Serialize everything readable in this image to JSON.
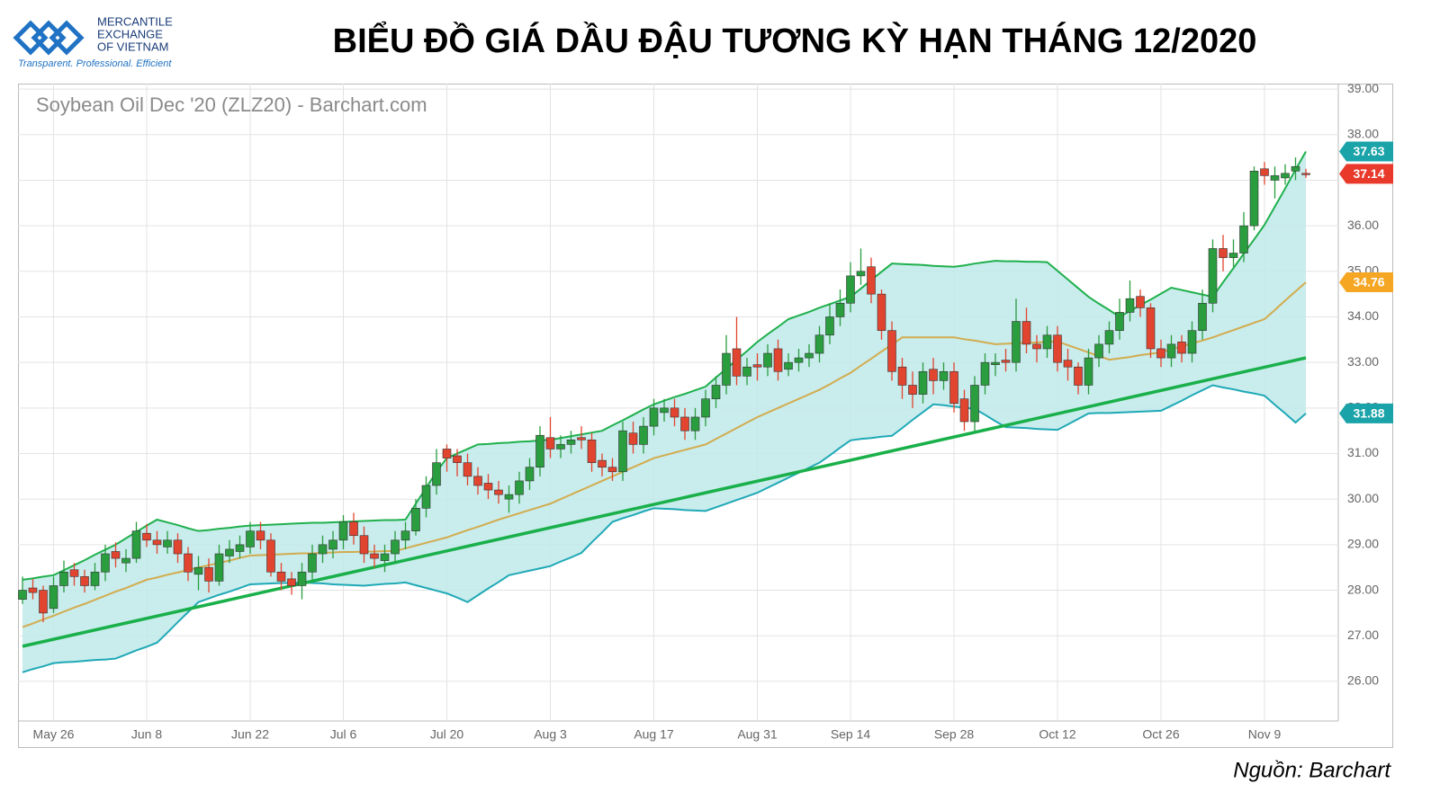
{
  "header": {
    "logo_lines": [
      "MERCANTILE",
      "EXCHANGE",
      "OF VIETNAM"
    ],
    "tagline": "Transparent. Professional. Efficient",
    "title": "BIỂU ĐỒ GIÁ DẦU ĐẬU TƯƠNG KỲ HẠN THÁNG 12/2020"
  },
  "source": "Nguồn: Barchart",
  "chart_data": {
    "type": "candlestick",
    "title": "Soybean Oil Dec '20 (ZLZ20) - Barchart.com",
    "categories": [
      null,
      null,
      null,
      "May 26",
      null,
      null,
      null,
      null,
      null,
      null,
      null,
      null,
      "Jun 8",
      null,
      null,
      null,
      null,
      null,
      null,
      null,
      null,
      null,
      "Jun 22",
      null,
      null,
      null,
      null,
      null,
      null,
      null,
      null,
      "Jul 6",
      null,
      null,
      null,
      null,
      null,
      null,
      null,
      null,
      null,
      "Jul 20",
      null,
      null,
      null,
      null,
      null,
      null,
      null,
      null,
      null,
      "Aug 3",
      null,
      null,
      null,
      null,
      null,
      null,
      null,
      null,
      null,
      "Aug 17",
      null,
      null,
      null,
      null,
      null,
      null,
      null,
      null,
      null,
      "Aug 31",
      null,
      null,
      null,
      null,
      null,
      null,
      null,
      null,
      "Sep 14",
      null,
      null,
      null,
      null,
      null,
      null,
      null,
      null,
      null,
      "Sep 28",
      null,
      null,
      null,
      null,
      null,
      null,
      null,
      null,
      null,
      "Oct 12",
      null,
      null,
      null,
      null,
      null,
      null,
      null,
      null,
      null,
      "Oct 26",
      null,
      null,
      null,
      null,
      null,
      null,
      null,
      null,
      null,
      "Nov 9",
      null,
      null,
      null,
      null
    ],
    "ylim": [
      25.13,
      39.12
    ],
    "yticks": [
      {
        "value": 26,
        "label": "26.00"
      },
      {
        "value": 27,
        "label": "27.00"
      },
      {
        "value": 28,
        "label": "28.00"
      },
      {
        "value": 29,
        "label": "29.00"
      },
      {
        "value": 30,
        "label": "30.00"
      },
      {
        "value": 31,
        "label": "31.00"
      },
      {
        "value": 32,
        "label": "32.00"
      },
      {
        "value": 33,
        "label": "33.00"
      },
      {
        "value": 34,
        "label": "34.00"
      },
      {
        "value": 35,
        "label": "35.00"
      },
      {
        "value": 36,
        "label": "36.00"
      },
      {
        "value": 37,
        "label": "37.00"
      },
      {
        "value": 38,
        "label": "38.00"
      },
      {
        "value": 39,
        "label": "39.00"
      }
    ],
    "grid": true,
    "candles": {
      "up_color": "#2a9d3f",
      "down_color": "#e2452f",
      "label_color": "#e8392b",
      "open": [
        27.8,
        28.05,
        28.0,
        27.6,
        28.1,
        28.45,
        28.3,
        28.1,
        28.4,
        28.85,
        28.6,
        28.7,
        29.25,
        29.1,
        28.95,
        29.1,
        28.8,
        28.35,
        28.5,
        28.2,
        28.75,
        28.85,
        28.95,
        29.3,
        29.1,
        28.4,
        28.25,
        28.1,
        28.4,
        28.8,
        28.9,
        29.1,
        29.5,
        29.2,
        28.8,
        28.65,
        28.8,
        29.1,
        29.3,
        29.8,
        30.3,
        31.1,
        30.95,
        30.8,
        30.5,
        30.35,
        30.2,
        30.0,
        30.1,
        30.4,
        30.7,
        31.35,
        31.1,
        31.2,
        31.35,
        31.3,
        30.85,
        30.7,
        30.6,
        31.45,
        31.2,
        31.6,
        31.9,
        32.0,
        31.8,
        31.5,
        31.8,
        32.2,
        32.5,
        33.3,
        32.7,
        32.95,
        32.9,
        33.3,
        32.85,
        33.0,
        33.1,
        33.2,
        33.6,
        34.0,
        34.3,
        34.9,
        35.1,
        34.5,
        33.7,
        32.9,
        32.5,
        32.3,
        32.85,
        32.6,
        32.8,
        32.2,
        31.7,
        32.5,
        32.95,
        33.05,
        33.0,
        33.9,
        33.4,
        33.3,
        33.6,
        33.05,
        32.9,
        32.5,
        33.1,
        33.4,
        33.7,
        34.1,
        34.45,
        34.2,
        33.3,
        33.1,
        33.45,
        33.2,
        33.7,
        34.3,
        35.5,
        35.3,
        35.4,
        36.0,
        37.25,
        37.0,
        37.05,
        37.2,
        37.15
      ],
      "high": [
        28.3,
        28.25,
        28.1,
        28.3,
        28.65,
        28.6,
        28.45,
        28.6,
        29.0,
        29.05,
        28.9,
        29.5,
        29.45,
        29.3,
        29.3,
        29.25,
        28.95,
        28.75,
        28.7,
        29.0,
        29.1,
        29.2,
        29.5,
        29.5,
        29.25,
        28.6,
        28.4,
        28.6,
        29.0,
        29.2,
        29.3,
        29.65,
        29.7,
        29.4,
        29.0,
        29.0,
        29.3,
        29.5,
        30.0,
        30.5,
        31.1,
        31.2,
        31.1,
        31.0,
        30.7,
        30.55,
        30.4,
        30.3,
        30.6,
        30.9,
        31.6,
        31.8,
        31.4,
        31.5,
        31.6,
        31.45,
        31.0,
        30.9,
        31.7,
        31.7,
        31.8,
        32.2,
        32.2,
        32.2,
        32.0,
        32.0,
        32.4,
        32.7,
        33.6,
        34.0,
        33.1,
        33.2,
        33.4,
        33.5,
        33.2,
        33.3,
        33.4,
        33.8,
        34.3,
        34.6,
        35.2,
        35.5,
        35.3,
        34.6,
        33.9,
        33.1,
        32.8,
        33.0,
        33.1,
        33.0,
        33.0,
        32.4,
        32.7,
        33.2,
        33.2,
        33.3,
        34.4,
        34.2,
        33.6,
        33.8,
        33.8,
        33.3,
        33.0,
        33.3,
        33.6,
        33.9,
        34.4,
        34.8,
        34.6,
        34.3,
        33.5,
        33.6,
        33.6,
        33.9,
        34.6,
        35.7,
        35.8,
        35.7,
        36.3,
        37.3,
        37.4,
        37.3,
        37.35,
        37.5,
        37.25
      ],
      "low": [
        27.7,
        27.8,
        27.3,
        27.5,
        27.95,
        28.1,
        27.95,
        28.0,
        28.2,
        28.5,
        28.4,
        28.6,
        28.95,
        28.8,
        28.8,
        28.6,
        28.2,
        28.0,
        27.95,
        28.1,
        28.6,
        28.7,
        28.8,
        28.9,
        28.3,
        28.0,
        27.9,
        27.8,
        28.2,
        28.6,
        28.7,
        28.9,
        29.0,
        28.6,
        28.5,
        28.4,
        28.6,
        28.9,
        29.2,
        29.6,
        30.1,
        30.6,
        30.5,
        30.3,
        30.1,
        30.0,
        29.9,
        29.7,
        29.9,
        30.2,
        30.5,
        30.9,
        30.9,
        31.0,
        31.1,
        30.6,
        30.5,
        30.4,
        30.4,
        31.0,
        31.0,
        31.4,
        31.7,
        31.6,
        31.3,
        31.3,
        31.6,
        32.0,
        32.3,
        32.5,
        32.5,
        32.6,
        32.7,
        32.6,
        32.7,
        32.8,
        32.9,
        33.0,
        33.4,
        33.8,
        34.1,
        34.7,
        34.3,
        33.5,
        32.6,
        32.2,
        32.0,
        32.1,
        32.3,
        32.4,
        31.9,
        31.5,
        31.5,
        32.3,
        32.7,
        32.8,
        32.8,
        33.2,
        33.0,
        33.1,
        32.8,
        32.6,
        32.3,
        32.3,
        32.9,
        33.2,
        33.5,
        33.9,
        34.0,
        33.1,
        32.9,
        32.9,
        33.0,
        33.0,
        33.5,
        34.1,
        35.0,
        35.1,
        35.2,
        35.9,
        36.9,
        36.6,
        36.9,
        37.0,
        37.05
      ],
      "close": [
        28.0,
        27.95,
        27.5,
        28.1,
        28.4,
        28.3,
        28.1,
        28.4,
        28.8,
        28.7,
        28.7,
        29.3,
        29.1,
        29.0,
        29.1,
        28.8,
        28.4,
        28.5,
        28.2,
        28.8,
        28.9,
        29.0,
        29.3,
        29.1,
        28.4,
        28.2,
        28.1,
        28.4,
        28.8,
        29.0,
        29.1,
        29.5,
        29.2,
        28.8,
        28.7,
        28.8,
        29.1,
        29.3,
        29.8,
        30.3,
        30.8,
        30.9,
        30.8,
        30.5,
        30.3,
        30.2,
        30.1,
        30.1,
        30.4,
        30.7,
        31.4,
        31.1,
        31.2,
        31.3,
        31.3,
        30.8,
        30.7,
        30.6,
        31.5,
        31.2,
        31.6,
        32.0,
        32.0,
        31.8,
        31.5,
        31.8,
        32.2,
        32.5,
        33.2,
        32.7,
        32.9,
        32.9,
        33.2,
        32.8,
        33.0,
        33.1,
        33.2,
        33.6,
        34.0,
        34.3,
        34.9,
        35.0,
        34.5,
        33.7,
        32.8,
        32.5,
        32.3,
        32.8,
        32.6,
        32.8,
        32.1,
        31.7,
        32.5,
        33.0,
        33.0,
        33.0,
        33.9,
        33.4,
        33.3,
        33.6,
        33.0,
        32.9,
        32.5,
        33.1,
        33.4,
        33.7,
        34.1,
        34.4,
        34.2,
        33.3,
        33.1,
        33.4,
        33.2,
        33.7,
        34.3,
        35.5,
        35.3,
        35.4,
        36.0,
        37.2,
        37.1,
        37.1,
        37.15,
        37.3,
        37.14
      ]
    },
    "band_fill": "#bfe9ea",
    "series": [
      {
        "color": "#1fb04c",
        "label_color": "#1aa3a8",
        "values": [
          28.23,
          28.26,
          28.3,
          28.33,
          28.44,
          28.55,
          28.66,
          28.78,
          28.89,
          29.0,
          29.14,
          29.28,
          29.42,
          29.55,
          29.49,
          29.43,
          29.36,
          29.3,
          29.32,
          29.35,
          29.37,
          29.4,
          29.42,
          29.43,
          29.44,
          29.45,
          29.46,
          29.47,
          29.48,
          29.48,
          29.49,
          29.5,
          29.51,
          29.52,
          29.53,
          29.54,
          29.54,
          29.55,
          29.9,
          30.25,
          30.6,
          30.9,
          31.0,
          31.1,
          31.2,
          31.21,
          31.23,
          31.24,
          31.26,
          31.27,
          31.29,
          31.3,
          31.34,
          31.38,
          31.42,
          31.46,
          31.5,
          31.62,
          31.73,
          31.85,
          31.97,
          32.08,
          32.16,
          32.24,
          32.31,
          32.39,
          32.47,
          32.67,
          32.86,
          33.06,
          33.25,
          33.45,
          33.62,
          33.78,
          33.95,
          34.03,
          34.11,
          34.2,
          34.28,
          34.36,
          34.44,
          34.62,
          34.81,
          34.99,
          35.17,
          35.16,
          35.15,
          35.14,
          35.12,
          35.11,
          35.1,
          35.13,
          35.17,
          35.2,
          35.23,
          35.22,
          35.22,
          35.21,
          35.21,
          35.2,
          35.01,
          34.82,
          34.63,
          34.44,
          34.29,
          34.15,
          34.0,
          34.13,
          34.26,
          34.38,
          34.51,
          34.64,
          34.59,
          34.54,
          34.49,
          34.44,
          34.76,
          35.07,
          35.39,
          35.7,
          36.02,
          36.42,
          36.82,
          37.23,
          37.63
        ]
      },
      {
        "color": "#d2ac4e",
        "label_color": "#f5a623",
        "values": [
          27.19,
          27.27,
          27.36,
          27.44,
          27.53,
          27.62,
          27.7,
          27.79,
          27.88,
          27.97,
          28.05,
          28.14,
          28.23,
          28.28,
          28.34,
          28.39,
          28.44,
          28.5,
          28.55,
          28.6,
          28.65,
          28.71,
          28.76,
          28.77,
          28.78,
          28.79,
          28.8,
          28.81,
          28.81,
          28.82,
          28.83,
          28.84,
          28.84,
          28.85,
          28.85,
          28.86,
          28.86,
          28.92,
          28.98,
          29.04,
          29.1,
          29.16,
          29.24,
          29.32,
          29.39,
          29.47,
          29.55,
          29.62,
          29.69,
          29.76,
          29.83,
          29.9,
          30.0,
          30.1,
          30.2,
          30.3,
          30.4,
          30.5,
          30.6,
          30.7,
          30.8,
          30.9,
          30.96,
          31.02,
          31.08,
          31.14,
          31.2,
          31.32,
          31.44,
          31.56,
          31.68,
          31.8,
          31.9,
          32.0,
          32.1,
          32.2,
          32.3,
          32.4,
          32.52,
          32.65,
          32.77,
          32.93,
          33.08,
          33.24,
          33.39,
          33.55,
          33.55,
          33.55,
          33.55,
          33.55,
          33.55,
          33.51,
          33.48,
          33.44,
          33.4,
          33.41,
          33.42,
          33.43,
          33.44,
          33.45,
          33.46,
          33.38,
          33.3,
          33.22,
          33.14,
          33.06,
          33.09,
          33.12,
          33.16,
          33.19,
          33.22,
          33.29,
          33.35,
          33.42,
          33.48,
          33.55,
          33.63,
          33.71,
          33.79,
          33.87,
          33.95,
          34.15,
          34.36,
          34.56,
          34.76
        ]
      },
      {
        "color": "#1fa9b6",
        "label_color": "#1aa3a8",
        "values": [
          26.2,
          26.27,
          26.33,
          26.4,
          26.42,
          26.43,
          26.45,
          26.47,
          26.48,
          26.5,
          26.59,
          26.68,
          26.76,
          26.85,
          27.07,
          27.3,
          27.52,
          27.74,
          27.82,
          27.9,
          27.97,
          28.05,
          28.13,
          28.14,
          28.15,
          28.16,
          28.16,
          28.17,
          28.16,
          28.15,
          28.13,
          28.12,
          28.11,
          28.1,
          28.12,
          28.14,
          28.15,
          28.17,
          28.11,
          28.05,
          27.99,
          27.93,
          27.84,
          27.74,
          27.89,
          28.04,
          28.18,
          28.33,
          28.38,
          28.43,
          28.48,
          28.53,
          28.63,
          28.72,
          28.82,
          29.05,
          29.27,
          29.5,
          29.58,
          29.65,
          29.73,
          29.8,
          29.79,
          29.78,
          29.76,
          29.75,
          29.74,
          29.82,
          29.9,
          29.98,
          30.06,
          30.14,
          30.25,
          30.36,
          30.47,
          30.58,
          30.69,
          30.8,
          30.96,
          31.13,
          31.29,
          31.32,
          31.34,
          31.37,
          31.39,
          31.56,
          31.74,
          31.91,
          32.08,
          32.06,
          32.03,
          32.01,
          31.98,
          31.85,
          31.71,
          31.58,
          31.57,
          31.56,
          31.54,
          31.53,
          31.52,
          31.64,
          31.76,
          31.88,
          31.89,
          31.89,
          31.9,
          31.91,
          31.92,
          31.93,
          31.94,
          32.05,
          32.16,
          32.28,
          32.39,
          32.5,
          32.45,
          32.41,
          32.36,
          32.32,
          32.27,
          32.07,
          31.88,
          31.68,
          31.88
        ]
      }
    ],
    "trendline": {
      "color": "#19b04a",
      "values": [
        26.77,
        33.1
      ]
    }
  }
}
